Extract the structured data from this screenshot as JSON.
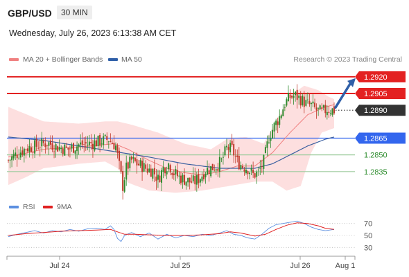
{
  "header": {
    "symbol": "GBP/USD",
    "timeframe": "30 MIN",
    "datetime": "Wednesday, July 26, 2023 6:13:38 AM CET"
  },
  "credit": "Research © 2023 Trading Central",
  "colors": {
    "resistance": "#e32121",
    "current": "#333333",
    "pivot": "#3366ee",
    "support": "#2a8a2a",
    "support_line": "#9dcc9d",
    "bollinger_fill": "#fddcdc",
    "ma20": "#f08080",
    "ma50": "#3a5fa0",
    "candle": "#2e8b2e",
    "candle_down": "#c0392b",
    "rsi": "#5b8fe0",
    "rsi_ma": "#e02020",
    "arrow": "#2f5fa8"
  },
  "icons": [
    "arrow-up-right-icon"
  ],
  "chart_data": [
    {
      "type": "candlestick",
      "legend": [
        {
          "label": "MA 20 + Bollinger Bands",
          "color": "#f08080"
        },
        {
          "label": "MA 50",
          "color": "#2f5fa8"
        }
      ],
      "x_ticks": [
        "Jul 24",
        "Jul 25",
        "Jul 26",
        "Aug 1"
      ],
      "ylim": [
        1.2815,
        1.2928
      ],
      "levels": [
        {
          "value": 1.292,
          "label": "1.2920",
          "kind": "resistance"
        },
        {
          "value": 1.2905,
          "label": "1.2905",
          "kind": "resistance"
        },
        {
          "value": 1.289,
          "label": "1.2890",
          "kind": "current"
        },
        {
          "value": 1.2865,
          "label": "1.2865",
          "kind": "pivot"
        },
        {
          "value": 1.285,
          "label": "1.2850",
          "kind": "support"
        },
        {
          "value": 1.2835,
          "label": "1.2835",
          "kind": "support"
        }
      ],
      "close_path": [
        [
          0,
          1.2845
        ],
        [
          4,
          1.285
        ],
        [
          10,
          1.2856
        ],
        [
          16,
          1.2858
        ],
        [
          22,
          1.2861
        ],
        [
          28,
          1.2857
        ],
        [
          34,
          1.2855
        ],
        [
          40,
          1.2859
        ],
        [
          46,
          1.286
        ],
        [
          52,
          1.2862
        ],
        [
          57,
          1.2864
        ],
        [
          61,
          1.2858
        ],
        [
          63,
          1.284
        ],
        [
          65,
          1.2822
        ],
        [
          67,
          1.2838
        ],
        [
          70,
          1.2845
        ],
        [
          73,
          1.2842
        ],
        [
          76,
          1.284
        ],
        [
          79,
          1.2837
        ],
        [
          82,
          1.2836
        ],
        [
          85,
          1.2828
        ],
        [
          88,
          1.2838
        ],
        [
          91,
          1.2842
        ],
        [
          94,
          1.2834
        ],
        [
          97,
          1.283
        ],
        [
          100,
          1.2828
        ],
        [
          103,
          1.2826
        ],
        [
          106,
          1.2826
        ],
        [
          109,
          1.283
        ],
        [
          112,
          1.2836
        ],
        [
          115,
          1.2838
        ],
        [
          118,
          1.284
        ],
        [
          121,
          1.2844
        ],
        [
          124,
          1.2856
        ],
        [
          127,
          1.2855
        ],
        [
          130,
          1.2844
        ],
        [
          133,
          1.284
        ],
        [
          136,
          1.2838
        ],
        [
          139,
          1.2832
        ],
        [
          142,
          1.2834
        ],
        [
          145,
          1.2844
        ],
        [
          148,
          1.2866
        ],
        [
          151,
          1.2876
        ],
        [
          154,
          1.2884
        ],
        [
          157,
          1.2896
        ],
        [
          160,
          1.2902
        ],
        [
          163,
          1.2903
        ],
        [
          166,
          1.29
        ],
        [
          169,
          1.2896
        ],
        [
          172,
          1.2894
        ],
        [
          175,
          1.289
        ],
        [
          178,
          1.2888
        ],
        [
          181,
          1.2891
        ],
        [
          185,
          1.289
        ]
      ],
      "ma20_path": [
        [
          0,
          1.2848
        ],
        [
          20,
          1.2855
        ],
        [
          40,
          1.2857
        ],
        [
          60,
          1.286
        ],
        [
          68,
          1.2855
        ],
        [
          80,
          1.2845
        ],
        [
          90,
          1.2838
        ],
        [
          100,
          1.2834
        ],
        [
          110,
          1.2832
        ],
        [
          120,
          1.2835
        ],
        [
          130,
          1.284
        ],
        [
          140,
          1.284
        ],
        [
          150,
          1.2852
        ],
        [
          160,
          1.287
        ],
        [
          170,
          1.2886
        ],
        [
          180,
          1.2893
        ],
        [
          185,
          1.2895
        ]
      ],
      "bb_upper_path": [
        [
          0,
          1.2893
        ],
        [
          20,
          1.288
        ],
        [
          40,
          1.2878
        ],
        [
          55,
          1.288
        ],
        [
          62,
          1.288
        ],
        [
          70,
          1.2877
        ],
        [
          85,
          1.287
        ],
        [
          100,
          1.286
        ],
        [
          115,
          1.2855
        ],
        [
          125,
          1.2865
        ],
        [
          135,
          1.2866
        ],
        [
          145,
          1.286
        ],
        [
          152,
          1.288
        ],
        [
          160,
          1.2903
        ],
        [
          168,
          1.2912
        ],
        [
          176,
          1.2908
        ],
        [
          182,
          1.2902
        ],
        [
          185,
          1.29
        ]
      ],
      "bb_lower_path": [
        [
          0,
          1.2823
        ],
        [
          10,
          1.283
        ],
        [
          20,
          1.2838
        ],
        [
          40,
          1.2842
        ],
        [
          55,
          1.2844
        ],
        [
          62,
          1.2838
        ],
        [
          68,
          1.2825
        ],
        [
          80,
          1.2818
        ],
        [
          95,
          1.2816
        ],
        [
          110,
          1.2818
        ],
        [
          125,
          1.2822
        ],
        [
          140,
          1.2826
        ],
        [
          150,
          1.2826
        ],
        [
          158,
          1.2818
        ],
        [
          166,
          1.2822
        ],
        [
          172,
          1.2852
        ],
        [
          178,
          1.287
        ],
        [
          185,
          1.2874
        ]
      ],
      "ma50_path": [
        [
          0,
          1.2866
        ],
        [
          20,
          1.2863
        ],
        [
          40,
          1.2858
        ],
        [
          60,
          1.2853
        ],
        [
          80,
          1.2848
        ],
        [
          100,
          1.2842
        ],
        [
          120,
          1.2838
        ],
        [
          140,
          1.2838
        ],
        [
          150,
          1.2842
        ],
        [
          160,
          1.285
        ],
        [
          170,
          1.2858
        ],
        [
          180,
          1.2864
        ],
        [
          185,
          1.2866
        ]
      ]
    },
    {
      "type": "line",
      "legend": [
        {
          "label": "RSI",
          "color": "#5b8fe0"
        },
        {
          "label": "9MA",
          "color": "#e02020"
        }
      ],
      "y_ticks": [
        70,
        50,
        30
      ],
      "ylim": [
        20,
        80
      ],
      "series": [
        {
          "name": "RSI",
          "points": [
            [
              0,
              48
            ],
            [
              5,
              52
            ],
            [
              10,
              55
            ],
            [
              15,
              58
            ],
            [
              20,
              54
            ],
            [
              25,
              58
            ],
            [
              30,
              56
            ],
            [
              35,
              60
            ],
            [
              40,
              57
            ],
            [
              45,
              61
            ],
            [
              50,
              62
            ],
            [
              55,
              60
            ],
            [
              58,
              66
            ],
            [
              60,
              60
            ],
            [
              62,
              45
            ],
            [
              64,
              40
            ],
            [
              66,
              50
            ],
            [
              70,
              55
            ],
            [
              75,
              48
            ],
            [
              80,
              54
            ],
            [
              85,
              44
            ],
            [
              90,
              52
            ],
            [
              95,
              46
            ],
            [
              100,
              50
            ],
            [
              105,
              48
            ],
            [
              110,
              52
            ],
            [
              115,
              50
            ],
            [
              120,
              54
            ],
            [
              124,
              58
            ],
            [
              128,
              52
            ],
            [
              132,
              50
            ],
            [
              136,
              46
            ],
            [
              140,
              44
            ],
            [
              144,
              52
            ],
            [
              148,
              62
            ],
            [
              152,
              68
            ],
            [
              156,
              70
            ],
            [
              160,
              72
            ],
            [
              164,
              74
            ],
            [
              168,
              70
            ],
            [
              172,
              64
            ],
            [
              176,
              60
            ],
            [
              180,
              58
            ],
            [
              185,
              60
            ]
          ]
        },
        {
          "name": "9MA",
          "points": [
            [
              0,
              50
            ],
            [
              10,
              53
            ],
            [
              20,
              55
            ],
            [
              30,
              57
            ],
            [
              40,
              58
            ],
            [
              50,
              59
            ],
            [
              58,
              60
            ],
            [
              62,
              56
            ],
            [
              66,
              52
            ],
            [
              72,
              52
            ],
            [
              80,
              51
            ],
            [
              90,
              50
            ],
            [
              100,
              50
            ],
            [
              110,
              51
            ],
            [
              120,
              53
            ],
            [
              126,
              56
            ],
            [
              132,
              54
            ],
            [
              140,
              49
            ],
            [
              146,
              52
            ],
            [
              152,
              60
            ],
            [
              158,
              67
            ],
            [
              164,
              71
            ],
            [
              170,
              70
            ],
            [
              176,
              66
            ],
            [
              180,
              62
            ],
            [
              185,
              60
            ]
          ]
        }
      ]
    }
  ]
}
